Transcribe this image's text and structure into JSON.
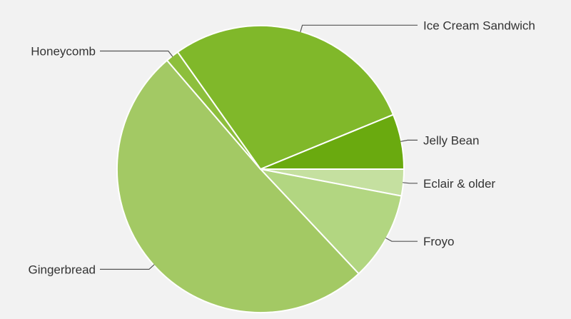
{
  "chart_data": {
    "type": "pie",
    "start_angle_deg": 0,
    "direction": "clockwise",
    "slices": [
      {
        "label": "Eclair & older",
        "value": 3.0,
        "color": "#c5e0a0"
      },
      {
        "label": "Froyo",
        "value": 10.0,
        "color": "#b2d681"
      },
      {
        "label": "Gingerbread",
        "value": 50.7,
        "color": "#a3c964"
      },
      {
        "label": "Honeycomb",
        "value": 1.5,
        "color": "#8dbf3c"
      },
      {
        "label": "Ice Cream Sandwich",
        "value": 28.6,
        "color": "#80b82a"
      },
      {
        "label": "Jelly Bean",
        "value": 6.2,
        "color": "#6aaa0f"
      }
    ]
  }
}
